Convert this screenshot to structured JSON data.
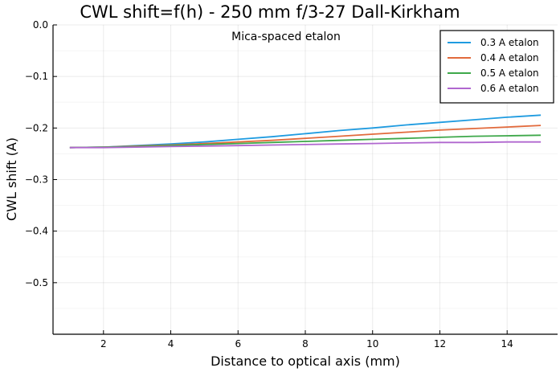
{
  "chart_data": {
    "type": "line",
    "title": "CWL shift=f(h) - 250 mm f/3-27 Dall-Kirkham",
    "annotation": "Mica-spaced etalon",
    "xlabel": "Distance to optical axis (mm)",
    "ylabel": "CWL shift (A)",
    "xlim": [
      0.5,
      15.5
    ],
    "ylim": [
      -0.6,
      0.0
    ],
    "xticks": [
      2,
      4,
      6,
      8,
      10,
      12,
      14
    ],
    "yticks": [
      0.0,
      -0.1,
      -0.2,
      -0.3,
      -0.4,
      -0.5
    ],
    "ytick_labels": [
      "0.0",
      "−0.1",
      "−0.2",
      "−0.3",
      "−0.4",
      "−0.5"
    ],
    "grid": true,
    "legend_position": "top-right",
    "x": [
      1,
      2,
      3,
      4,
      5,
      6,
      7,
      8,
      9,
      10,
      11,
      12,
      13,
      14,
      15
    ],
    "series": [
      {
        "name": "0.3 A etalon",
        "color": "#1f9be0",
        "values": [
          -0.238,
          -0.237,
          -0.234,
          -0.231,
          -0.227,
          -0.222,
          -0.217,
          -0.211,
          -0.205,
          -0.2,
          -0.194,
          -0.189,
          -0.184,
          -0.179,
          -0.175
        ]
      },
      {
        "name": "0.4 A etalon",
        "color": "#e26a3c",
        "values": [
          -0.238,
          -0.237,
          -0.235,
          -0.233,
          -0.23,
          -0.227,
          -0.224,
          -0.22,
          -0.216,
          -0.212,
          -0.208,
          -0.204,
          -0.201,
          -0.198,
          -0.195
        ]
      },
      {
        "name": "0.5 A etalon",
        "color": "#3ea84a",
        "values": [
          -0.238,
          -0.237,
          -0.236,
          -0.234,
          -0.232,
          -0.23,
          -0.228,
          -0.226,
          -0.224,
          -0.222,
          -0.22,
          -0.218,
          -0.216,
          -0.215,
          -0.214
        ]
      },
      {
        "name": "0.6 A etalon",
        "color": "#b067cf",
        "values": [
          -0.238,
          -0.238,
          -0.237,
          -0.236,
          -0.235,
          -0.234,
          -0.233,
          -0.232,
          -0.231,
          -0.23,
          -0.229,
          -0.228,
          -0.228,
          -0.227,
          -0.227
        ]
      }
    ]
  }
}
